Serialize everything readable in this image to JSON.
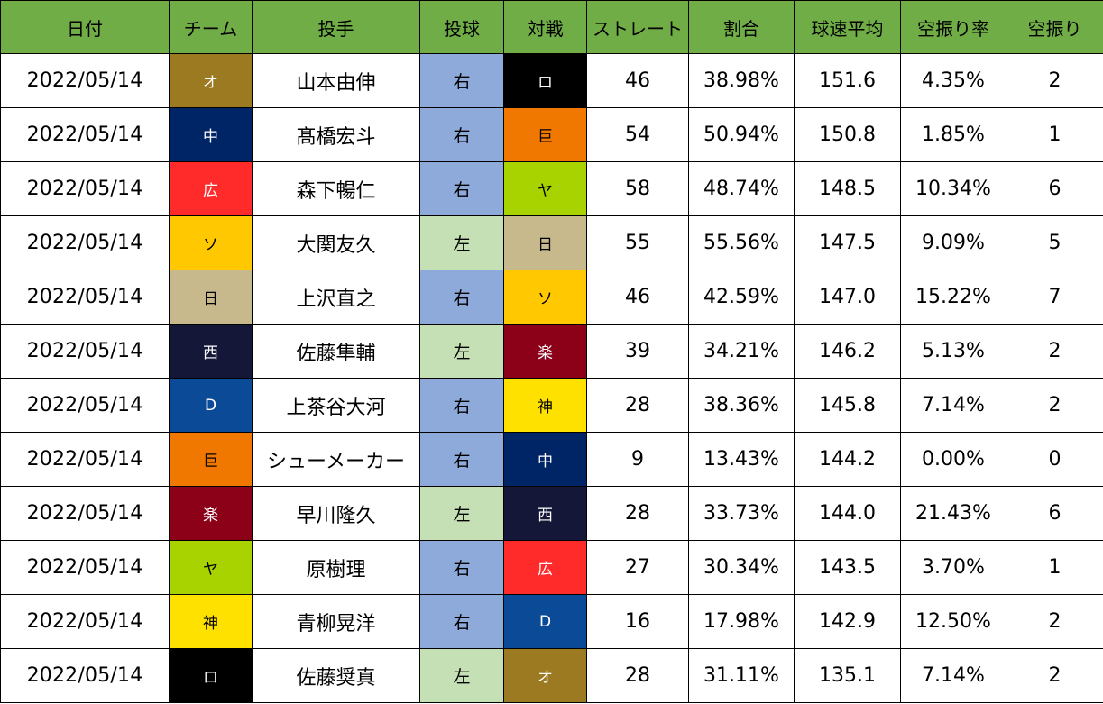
{
  "headers": [
    "日付",
    "チーム",
    "投手",
    "投球",
    "対戦",
    "ストレート",
    "割合",
    "球速平均",
    "空振り率",
    "空振り"
  ],
  "colors": {
    "header_bg": "#70ad47",
    "hand_right": "#8eaadb",
    "hand_left": "#c5e0b4"
  },
  "teams": {
    "オ": {
      "bg": "#9c7a22",
      "fg": "#ffffff"
    },
    "中": {
      "bg": "#002567",
      "fg": "#ffffff"
    },
    "広": {
      "bg": "#ff2b2b",
      "fg": "#ffffff"
    },
    "ソ": {
      "bg": "#ffc800",
      "fg": "#000000"
    },
    "日": {
      "bg": "#c8b98c",
      "fg": "#000000"
    },
    "西": {
      "bg": "#141737",
      "fg": "#ffffff"
    },
    "D": {
      "bg": "#0b4a96",
      "fg": "#ffffff"
    },
    "巨": {
      "bg": "#f07800",
      "fg": "#000000"
    },
    "楽": {
      "bg": "#8c0018",
      "fg": "#ffffff"
    },
    "ヤ": {
      "bg": "#a8d200",
      "fg": "#000000"
    },
    "神": {
      "bg": "#ffe100",
      "fg": "#000000"
    },
    "ロ": {
      "bg": "#000000",
      "fg": "#ffffff"
    }
  },
  "rows": [
    {
      "date": "2022/05/14",
      "team": "オ",
      "pitcher": "山本由伸",
      "hand": "右",
      "opp": "ロ",
      "straight": "46",
      "ratio": "38.98%",
      "speed": "151.6",
      "whiff_rate": "4.35%",
      "whiffs": "2"
    },
    {
      "date": "2022/05/14",
      "team": "中",
      "pitcher": "髙橋宏斗",
      "hand": "右",
      "opp": "巨",
      "straight": "54",
      "ratio": "50.94%",
      "speed": "150.8",
      "whiff_rate": "1.85%",
      "whiffs": "1"
    },
    {
      "date": "2022/05/14",
      "team": "広",
      "pitcher": "森下暢仁",
      "hand": "右",
      "opp": "ヤ",
      "straight": "58",
      "ratio": "48.74%",
      "speed": "148.5",
      "whiff_rate": "10.34%",
      "whiffs": "6"
    },
    {
      "date": "2022/05/14",
      "team": "ソ",
      "pitcher": "大関友久",
      "hand": "左",
      "opp": "日",
      "straight": "55",
      "ratio": "55.56%",
      "speed": "147.5",
      "whiff_rate": "9.09%",
      "whiffs": "5"
    },
    {
      "date": "2022/05/14",
      "team": "日",
      "pitcher": "上沢直之",
      "hand": "右",
      "opp": "ソ",
      "straight": "46",
      "ratio": "42.59%",
      "speed": "147.0",
      "whiff_rate": "15.22%",
      "whiffs": "7"
    },
    {
      "date": "2022/05/14",
      "team": "西",
      "pitcher": "佐藤隼輔",
      "hand": "左",
      "opp": "楽",
      "straight": "39",
      "ratio": "34.21%",
      "speed": "146.2",
      "whiff_rate": "5.13%",
      "whiffs": "2"
    },
    {
      "date": "2022/05/14",
      "team": "D",
      "pitcher": "上茶谷大河",
      "hand": "右",
      "opp": "神",
      "straight": "28",
      "ratio": "38.36%",
      "speed": "145.8",
      "whiff_rate": "7.14%",
      "whiffs": "2"
    },
    {
      "date": "2022/05/14",
      "team": "巨",
      "pitcher": "シューメーカー",
      "hand": "右",
      "opp": "中",
      "straight": "9",
      "ratio": "13.43%",
      "speed": "144.2",
      "whiff_rate": "0.00%",
      "whiffs": "0"
    },
    {
      "date": "2022/05/14",
      "team": "楽",
      "pitcher": "早川隆久",
      "hand": "左",
      "opp": "西",
      "straight": "28",
      "ratio": "33.73%",
      "speed": "144.0",
      "whiff_rate": "21.43%",
      "whiffs": "6"
    },
    {
      "date": "2022/05/14",
      "team": "ヤ",
      "pitcher": "原樹理",
      "hand": "右",
      "opp": "広",
      "straight": "27",
      "ratio": "30.34%",
      "speed": "143.5",
      "whiff_rate": "3.70%",
      "whiffs": "1"
    },
    {
      "date": "2022/05/14",
      "team": "神",
      "pitcher": "青柳晃洋",
      "hand": "右",
      "opp": "D",
      "straight": "16",
      "ratio": "17.98%",
      "speed": "142.9",
      "whiff_rate": "12.50%",
      "whiffs": "2"
    },
    {
      "date": "2022/05/14",
      "team": "ロ",
      "pitcher": "佐藤奨真",
      "hand": "左",
      "opp": "オ",
      "straight": "28",
      "ratio": "31.11%",
      "speed": "135.1",
      "whiff_rate": "7.14%",
      "whiffs": "2"
    }
  ]
}
